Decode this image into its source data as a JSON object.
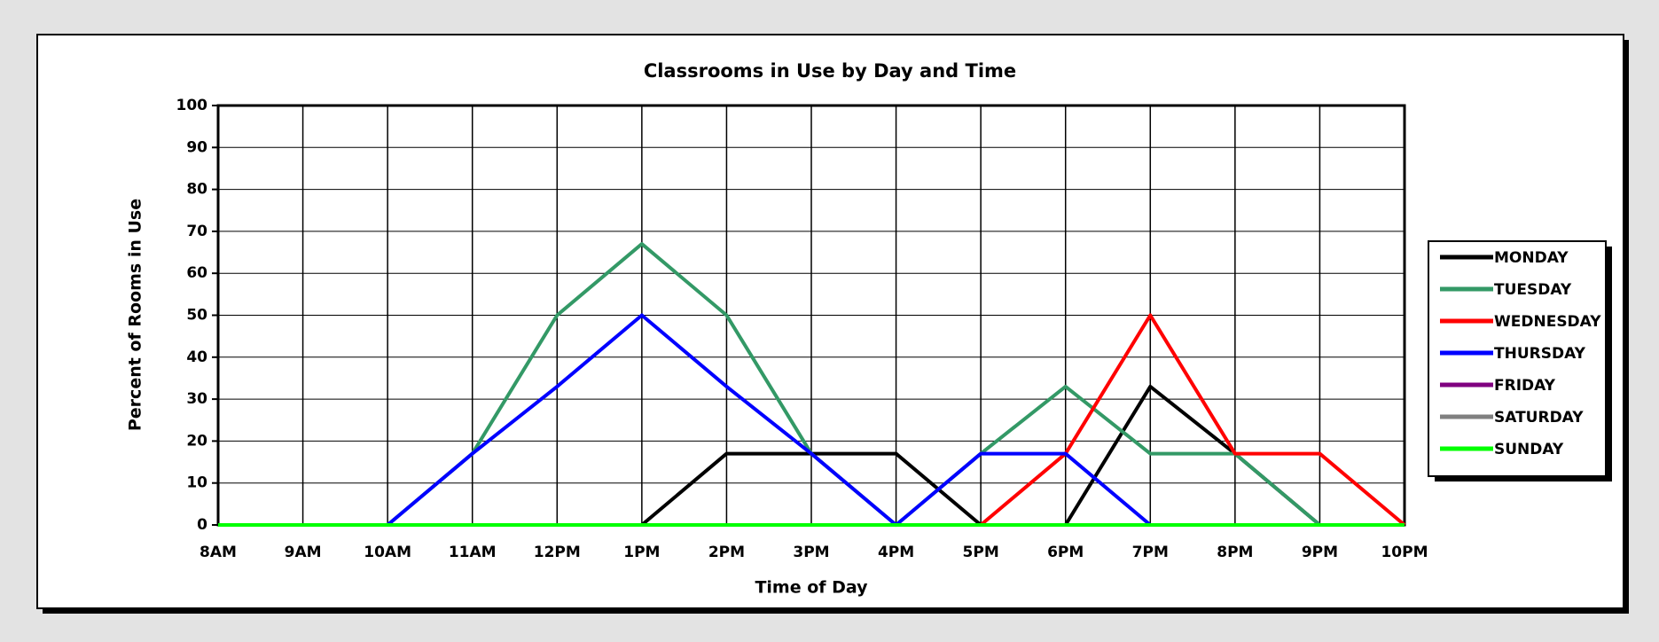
{
  "chart_data": {
    "type": "line",
    "title": "Classrooms in Use by Day and Time",
    "x_label": "Time of Day",
    "y_label": "Percent of Rooms in Use",
    "categories": [
      "8AM",
      "9AM",
      "10AM",
      "11AM",
      "12PM",
      "1PM",
      "2PM",
      "3PM",
      "4PM",
      "5PM",
      "6PM",
      "7PM",
      "8PM",
      "9PM",
      "10PM"
    ],
    "series": [
      {
        "name": "MONDAY",
        "color": "#000000",
        "values": [
          0,
          0,
          0,
          0,
          0,
          0,
          17,
          17,
          17,
          0,
          0,
          33,
          17,
          0,
          0
        ]
      },
      {
        "name": "TUESDAY",
        "color": "#339966",
        "values": [
          0,
          0,
          0,
          17,
          50,
          67,
          50,
          17,
          0,
          17,
          33,
          17,
          17,
          0,
          0
        ]
      },
      {
        "name": "WEDNESDAY",
        "color": "#ff0000",
        "values": [
          0,
          0,
          0,
          0,
          0,
          0,
          0,
          0,
          0,
          0,
          17,
          50,
          17,
          17,
          0
        ]
      },
      {
        "name": "THURSDAY",
        "color": "#0000ff",
        "values": [
          0,
          0,
          0,
          17,
          33,
          50,
          33,
          17,
          0,
          17,
          17,
          0,
          0,
          0,
          0
        ]
      },
      {
        "name": "FRIDAY",
        "color": "#800080",
        "values": [
          0,
          0,
          0,
          0,
          0,
          0,
          0,
          0,
          0,
          0,
          0,
          0,
          0,
          0,
          0
        ]
      },
      {
        "name": "SATURDAY",
        "color": "#808080",
        "values": [
          0,
          0,
          0,
          0,
          0,
          0,
          0,
          0,
          0,
          0,
          0,
          0,
          0,
          0,
          0
        ]
      },
      {
        "name": "SUNDAY",
        "color": "#00ff00",
        "values": [
          0,
          0,
          0,
          0,
          0,
          0,
          0,
          0,
          0,
          0,
          0,
          0,
          0,
          0,
          0
        ]
      }
    ],
    "ylim": [
      0,
      100
    ],
    "yticks": [
      0,
      10,
      20,
      30,
      40,
      50,
      60,
      70,
      80,
      90,
      100
    ],
    "grid": true,
    "legend": "right"
  }
}
